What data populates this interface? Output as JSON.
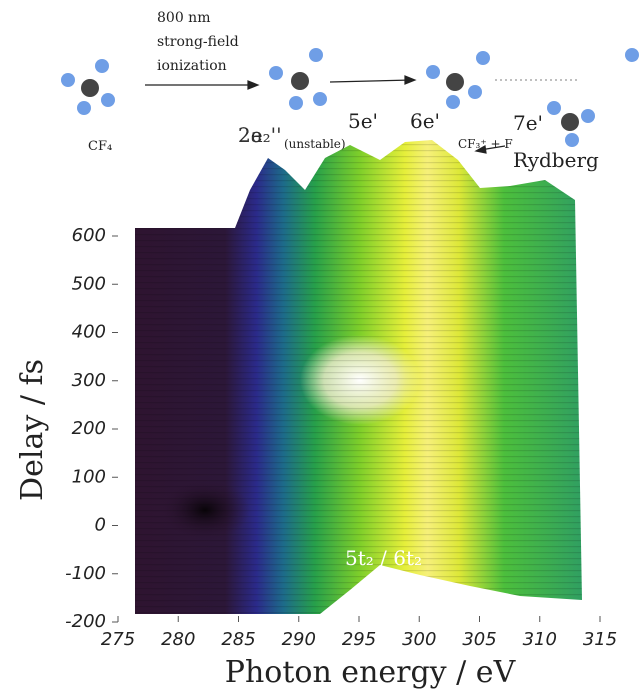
{
  "chart_data": {
    "type": "surface",
    "xlabel": "Photon energy / eV",
    "ylabel": "Delay / fs",
    "xlim": [
      275,
      315
    ],
    "xticks": [
      275,
      280,
      285,
      290,
      295,
      300,
      305,
      310,
      315
    ],
    "ylim": [
      -200,
      600
    ],
    "yticks": [
      -200,
      -100,
      0,
      100,
      200,
      300,
      400,
      500,
      600
    ],
    "annotations": [
      "800 nm",
      "strong-field",
      "ionization",
      "CF₄",
      "2e",
      "2a₂''",
      "(unstable)",
      "5e'",
      "6e'",
      "7e'",
      "CF₃⁺ + F",
      "Rydberg",
      "5t₂ / 6t₂"
    ]
  }
}
